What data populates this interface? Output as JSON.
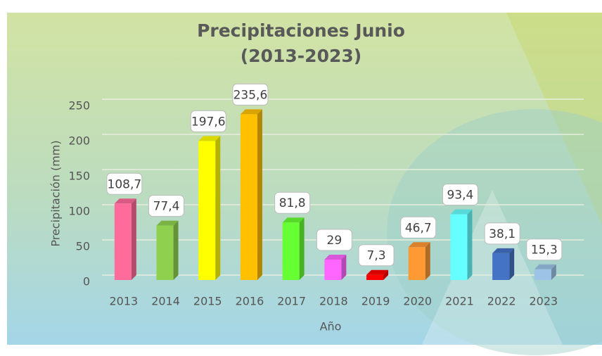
{
  "chart_data": {
    "type": "bar",
    "title": "Precipitaciones Junio\n(2013-2023)",
    "x_label": "Año",
    "y_label": "Precipitación (mm)",
    "categories": [
      "2013",
      "2014",
      "2015",
      "2016",
      "2017",
      "2018",
      "2019",
      "2020",
      "2021",
      "2022",
      "2023"
    ],
    "values": [
      108.7,
      77.4,
      197.6,
      235.6,
      81.8,
      29,
      7.3,
      46.7,
      93.4,
      38.1,
      15.3
    ],
    "value_labels": [
      "108,7",
      "77,4",
      "197,6",
      "235,6",
      "81,8",
      "29",
      "7,3",
      "46,7",
      "93,4",
      "38,1",
      "15,3"
    ],
    "colors": [
      "#ff6b9a",
      "#8fd14f",
      "#ffff00",
      "#ffc000",
      "#66ff33",
      "#ff66ff",
      "#ff0000",
      "#ff9933",
      "#66ffff",
      "#4472c4",
      "#9dc3e6"
    ],
    "ylim": [
      0,
      250
    ],
    "yticks": [
      0,
      50,
      100,
      150,
      200,
      250
    ],
    "grid": true
  }
}
